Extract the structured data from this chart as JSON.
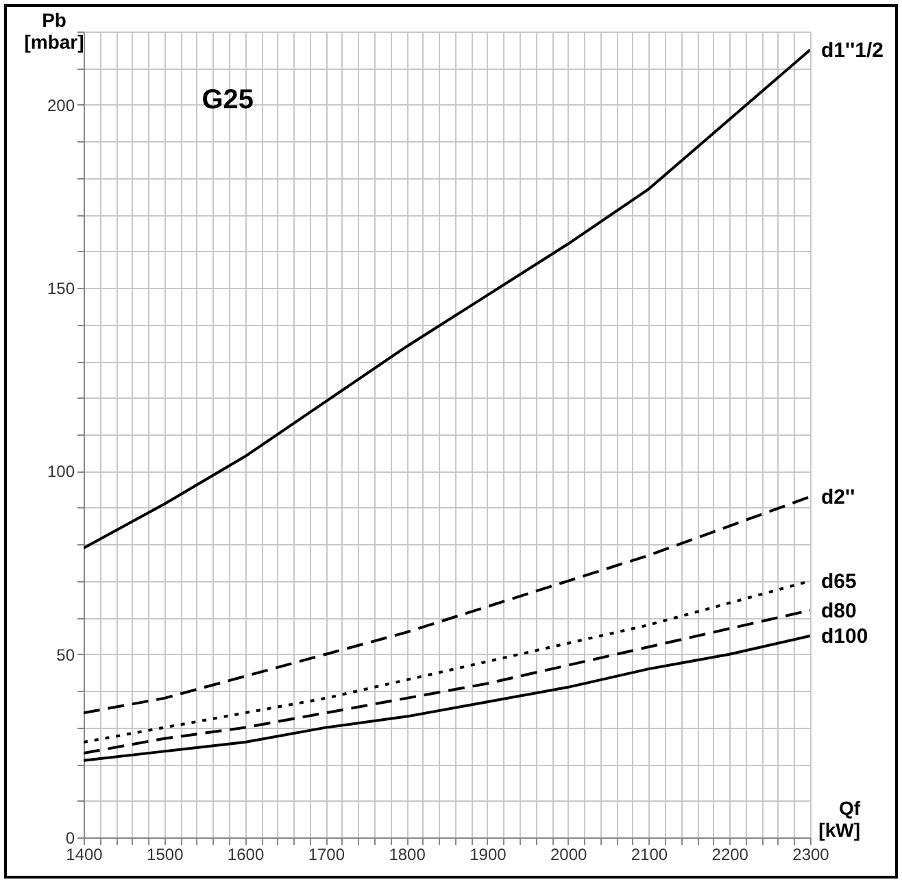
{
  "chart_data": {
    "type": "line",
    "title": "G25",
    "xlabel": "Qf [kW]",
    "ylabel": "Pb [mbar]",
    "x": [
      1400,
      1500,
      1600,
      1700,
      1800,
      1900,
      2000,
      2100,
      2200,
      2300
    ],
    "series": [
      {
        "name": "d1''1/2",
        "color": "#000000",
        "line_style": "solid",
        "values": [
          79,
          91,
          104,
          119,
          134,
          148,
          162,
          177,
          196,
          215
        ]
      },
      {
        "name": "d2''",
        "color": "#000000",
        "line_style": "dashed",
        "values": [
          34,
          38,
          44,
          50,
          56,
          63,
          70,
          77,
          85,
          93
        ]
      },
      {
        "name": "d65",
        "color": "#000000",
        "line_style": "dotted",
        "values": [
          26,
          30,
          34,
          38,
          43,
          48,
          53,
          58,
          64,
          70
        ]
      },
      {
        "name": "d80",
        "color": "#000000",
        "line_style": "dashed",
        "values": [
          23,
          27,
          30,
          34,
          38,
          42,
          47,
          52,
          57,
          62
        ]
      },
      {
        "name": "d100",
        "color": "#000000",
        "line_style": "solid",
        "values": [
          21,
          23.5,
          26,
          30,
          33,
          37,
          41,
          46,
          50,
          55
        ]
      }
    ],
    "xlim": [
      1400,
      2300
    ],
    "ylim": [
      0,
      220
    ],
    "xticks": [
      1400,
      {
        "value": 1420,
        "label": null
      },
      {
        "value": 1440,
        "label": null
      },
      {
        "value": 1460,
        "label": null
      },
      {
        "value": 1480,
        "label": null
      },
      1500,
      {
        "value": 1520,
        "label": null
      },
      {
        "value": 1540,
        "label": null
      },
      {
        "value": 1560,
        "label": null
      },
      {
        "value": 1580,
        "label": null
      },
      1600,
      {
        "value": 1620,
        "label": null
      },
      {
        "value": 1640,
        "label": null
      },
      {
        "value": 1660,
        "label": null
      },
      {
        "value": 1680,
        "label": null
      },
      1700,
      {
        "value": 1720,
        "label": null
      },
      {
        "value": 1740,
        "label": null
      },
      {
        "value": 1760,
        "label": null
      },
      {
        "value": 1780,
        "label": null
      },
      1800,
      {
        "value": 1820,
        "label": null
      },
      {
        "value": 1840,
        "label": null
      },
      {
        "value": 1860,
        "label": null
      },
      {
        "value": 1880,
        "label": null
      },
      1900,
      {
        "value": 1920,
        "label": null
      },
      {
        "value": 1940,
        "label": null
      },
      {
        "value": 1960,
        "label": null
      },
      {
        "value": 1980,
        "label": null
      },
      2000,
      {
        "value": 2020,
        "label": null
      },
      {
        "value": 2040,
        "label": null
      },
      {
        "value": 2060,
        "label": null
      },
      {
        "value": 2080,
        "label": null
      },
      2100,
      {
        "value": 2120,
        "label": null
      },
      {
        "value": 2140,
        "label": null
      },
      {
        "value": 2160,
        "label": null
      },
      {
        "value": 2180,
        "label": null
      },
      2200,
      {
        "value": 2220,
        "label": null
      },
      {
        "value": 2240,
        "label": null
      },
      {
        "value": 2260,
        "label": null
      },
      {
        "value": 2280,
        "label": null
      },
      2300
    ],
    "yticks": [
      0,
      {
        "value": 10,
        "label": null
      },
      {
        "value": 20,
        "label": null
      },
      {
        "value": 30,
        "label": null
      },
      {
        "value": 40,
        "label": null
      },
      50,
      {
        "value": 60,
        "label": null
      },
      {
        "value": 70,
        "label": null
      },
      {
        "value": 80,
        "label": null
      },
      {
        "value": 90,
        "label": null
      },
      100,
      {
        "value": 110,
        "label": null
      },
      {
        "value": 120,
        "label": null
      },
      {
        "value": 130,
        "label": null
      },
      {
        "value": 140,
        "label": null
      },
      150,
      {
        "value": 160,
        "label": null
      },
      {
        "value": 170,
        "label": null
      },
      {
        "value": 180,
        "label": null
      },
      {
        "value": 190,
        "label": null
      },
      200,
      {
        "value": 210,
        "label": null
      },
      {
        "value": 220,
        "label": null
      }
    ],
    "grid": true,
    "legend": false
  }
}
